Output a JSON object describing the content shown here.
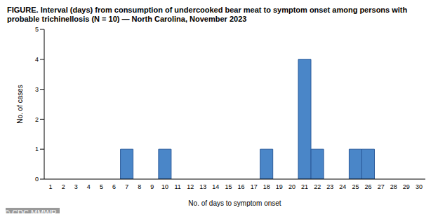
{
  "chart_data": {
    "type": "bar",
    "title": "FIGURE. Interval (days) from consumption of undercooked bear meat to symptom onset among persons with probable trichinellosis (N = 10) — North Carolina, November 2023",
    "x_label": "No. of days to symptom onset",
    "y_label": "No. of cases",
    "categories": [
      "1",
      "2",
      "3",
      "4",
      "5",
      "6",
      "7",
      "8",
      "9",
      "10",
      "11",
      "12",
      "13",
      "14",
      "15",
      "16",
      "17",
      "18",
      "19",
      "20",
      "21",
      "22",
      "23",
      "24",
      "25",
      "26",
      "27",
      "28",
      "29",
      "30"
    ],
    "values": [
      0,
      0,
      0,
      0,
      0,
      0,
      1,
      0,
      0,
      1,
      0,
      0,
      0,
      0,
      0,
      0,
      0,
      1,
      0,
      0,
      4,
      1,
      0,
      0,
      1,
      1,
      0,
      0,
      0,
      0
    ],
    "color": "#4a86c8",
    "ylim": [
      0,
      5
    ],
    "yticks": [
      0,
      1,
      2,
      3,
      4,
      5
    ],
    "grid": false,
    "annotations": [
      "© CDC MMWR"
    ]
  }
}
